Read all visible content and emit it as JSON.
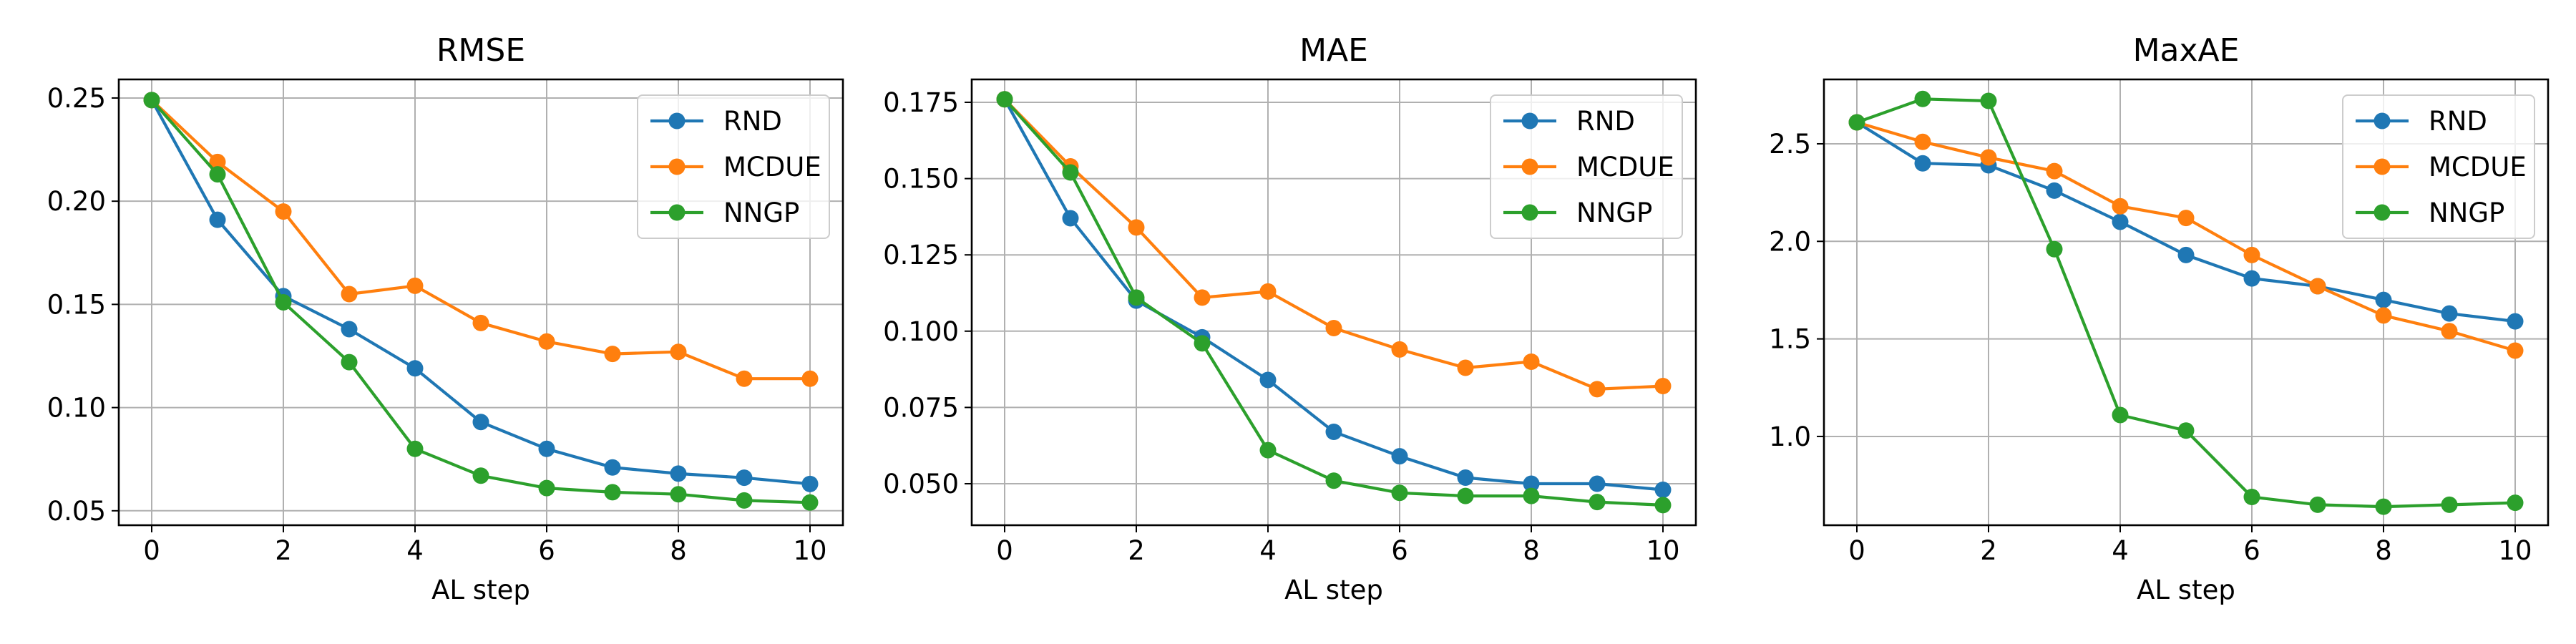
{
  "chart_data": [
    {
      "type": "line",
      "title": "RMSE",
      "xlabel": "AL step",
      "ylabel": "",
      "x": [
        0,
        1,
        2,
        3,
        4,
        5,
        6,
        7,
        8,
        9,
        10
      ],
      "xlim": [
        -0.5,
        10.5
      ],
      "ylim": [
        0.043,
        0.259
      ],
      "xticks": [
        0,
        2,
        4,
        6,
        8,
        10
      ],
      "xtick_labels": [
        "0",
        "2",
        "4",
        "6",
        "8",
        "10"
      ],
      "yticks": [
        0.05,
        0.1,
        0.15,
        0.2,
        0.25
      ],
      "ytick_labels": [
        "0.05",
        "0.10",
        "0.15",
        "0.20",
        "0.25"
      ],
      "grid": true,
      "legend": "top-right",
      "series": [
        {
          "name": "RND",
          "color": "#1f77b4",
          "values": [
            0.249,
            0.191,
            0.154,
            0.138,
            0.119,
            0.093,
            0.08,
            0.071,
            0.068,
            0.066,
            0.063
          ]
        },
        {
          "name": "MCDUE",
          "color": "#ff7f0e",
          "values": [
            0.249,
            0.219,
            0.195,
            0.155,
            0.159,
            0.141,
            0.132,
            0.126,
            0.127,
            0.114,
            0.114
          ]
        },
        {
          "name": "NNGP",
          "color": "#2ca02c",
          "values": [
            0.249,
            0.213,
            0.151,
            0.122,
            0.08,
            0.067,
            0.061,
            0.059,
            0.058,
            0.055,
            0.054
          ]
        }
      ]
    },
    {
      "type": "line",
      "title": "MAE",
      "xlabel": "AL step",
      "ylabel": "",
      "x": [
        0,
        1,
        2,
        3,
        4,
        5,
        6,
        7,
        8,
        9,
        10
      ],
      "xlim": [
        -0.5,
        10.5
      ],
      "ylim": [
        0.0364,
        0.1825
      ],
      "xticks": [
        0,
        2,
        4,
        6,
        8,
        10
      ],
      "xtick_labels": [
        "0",
        "2",
        "4",
        "6",
        "8",
        "10"
      ],
      "yticks": [
        0.05,
        0.075,
        0.1,
        0.125,
        0.15,
        0.175
      ],
      "ytick_labels": [
        "0.050",
        "0.075",
        "0.100",
        "0.125",
        "0.150",
        "0.175"
      ],
      "grid": true,
      "legend": "top-right",
      "series": [
        {
          "name": "RND",
          "color": "#1f77b4",
          "values": [
            0.176,
            0.137,
            0.11,
            0.098,
            0.084,
            0.067,
            0.059,
            0.052,
            0.05,
            0.05,
            0.048
          ]
        },
        {
          "name": "MCDUE",
          "color": "#ff7f0e",
          "values": [
            0.176,
            0.154,
            0.134,
            0.111,
            0.113,
            0.101,
            0.094,
            0.088,
            0.09,
            0.081,
            0.082
          ]
        },
        {
          "name": "NNGP",
          "color": "#2ca02c",
          "values": [
            0.176,
            0.152,
            0.111,
            0.096,
            0.061,
            0.051,
            0.047,
            0.046,
            0.046,
            0.044,
            0.043
          ]
        }
      ]
    },
    {
      "type": "line",
      "title": "MaxAE",
      "xlabel": "AL step",
      "ylabel": "",
      "x": [
        0,
        1,
        2,
        3,
        4,
        5,
        6,
        7,
        8,
        9,
        10
      ],
      "xlim": [
        -0.5,
        10.5
      ],
      "ylim": [
        0.545,
        2.83
      ],
      "xticks": [
        0,
        2,
        4,
        6,
        8,
        10
      ],
      "xtick_labels": [
        "0",
        "2",
        "4",
        "6",
        "8",
        "10"
      ],
      "yticks": [
        1.0,
        1.5,
        2.0,
        2.5
      ],
      "ytick_labels": [
        "1.0",
        "1.5",
        "2.0",
        "2.5"
      ],
      "grid": true,
      "legend": "top-right",
      "series": [
        {
          "name": "RND",
          "color": "#1f77b4",
          "values": [
            2.61,
            2.4,
            2.39,
            2.26,
            2.1,
            1.93,
            1.81,
            1.77,
            1.7,
            1.63,
            1.59
          ]
        },
        {
          "name": "MCDUE",
          "color": "#ff7f0e",
          "values": [
            2.61,
            2.51,
            2.43,
            2.36,
            2.18,
            2.12,
            1.93,
            1.77,
            1.62,
            1.54,
            1.44
          ]
        },
        {
          "name": "NNGP",
          "color": "#2ca02c",
          "values": [
            2.61,
            2.73,
            2.72,
            1.96,
            1.11,
            1.03,
            0.69,
            0.65,
            0.64,
            0.65,
            0.66
          ]
        }
      ]
    }
  ]
}
